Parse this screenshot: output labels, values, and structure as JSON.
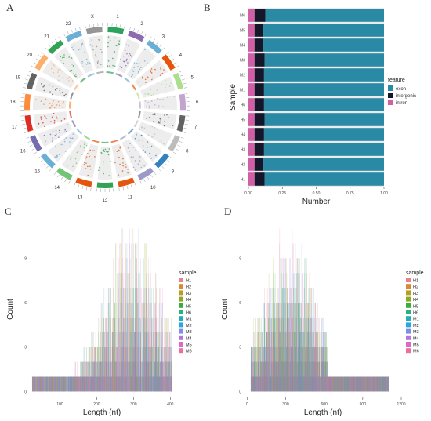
{
  "panel_labels": {
    "a": "A",
    "b": "B",
    "c": "C",
    "d": "D"
  },
  "chart_data": [
    {
      "panel": "A",
      "type": "circos",
      "chromosomes": [
        "1",
        "2",
        "3",
        "4",
        "5",
        "6",
        "7",
        "8",
        "9",
        "10",
        "11",
        "12",
        "13",
        "14",
        "15",
        "16",
        "17",
        "18",
        "19",
        "20",
        "21",
        "22",
        "X"
      ],
      "chromosome_colors": [
        "#2ca25f",
        "#8c6bb1",
        "#6baed6",
        "#e6550d",
        "#addd8e",
        "#c2a5cf",
        "#636363",
        "#bdbdbd",
        "#3182bd",
        "#9e9ac8",
        "#e6550d",
        "#31a354",
        "#e6550d",
        "#74c476",
        "#6baed6",
        "#756bb1",
        "#de2d26",
        "#fd8d3c",
        "#636363",
        "#fdae6b",
        "#31a354",
        "#6baed6",
        "#969696"
      ]
    },
    {
      "panel": "B",
      "type": "bar",
      "orientation": "horizontal",
      "stacked": true,
      "xlabel": "Number",
      "ylabel": "Sample",
      "categories": [
        "H1",
        "H2",
        "H3",
        "H4",
        "H5",
        "H6",
        "M1",
        "M2",
        "M3",
        "M4",
        "M5",
        "M6"
      ],
      "x_ticks": [
        "0.00",
        "0.25",
        "0.50",
        "0.75",
        "1.00"
      ],
      "xlim": [
        0,
        1
      ],
      "legend_title": "feature",
      "legend_position": "right",
      "series": [
        {
          "name": "intron",
          "color": "#d15fa5",
          "values": [
            0.045,
            0.045,
            0.045,
            0.045,
            0.045,
            0.045,
            0.045,
            0.045,
            0.045,
            0.045,
            0.045,
            0.045
          ]
        },
        {
          "name": "intergenic",
          "color": "#14162a",
          "values": [
            0.075,
            0.065,
            0.07,
            0.07,
            0.075,
            0.07,
            0.07,
            0.07,
            0.075,
            0.065,
            0.065,
            0.08
          ]
        },
        {
          "name": "exon",
          "color": "#2a8aa6",
          "values": [
            0.88,
            0.89,
            0.885,
            0.885,
            0.88,
            0.885,
            0.885,
            0.885,
            0.88,
            0.89,
            0.89,
            0.875
          ]
        }
      ],
      "legend_order": [
        "exon",
        "intergenic",
        "intron"
      ]
    },
    {
      "panel": "C",
      "type": "bar",
      "xlabel": "Length (nt)",
      "ylabel": "Count",
      "xlim": [
        18,
        410
      ],
      "ylim": [
        -0.4,
        11.5
      ],
      "x_ticks": [
        100,
        200,
        300,
        400
      ],
      "y_ticks": [
        0,
        3,
        6,
        9
      ],
      "legend_title": "sample",
      "legend_position": "right",
      "series": [
        {
          "name": "H1",
          "color": "#e7828a"
        },
        {
          "name": "H2",
          "color": "#d98a2f"
        },
        {
          "name": "H3",
          "color": "#b99c22"
        },
        {
          "name": "H4",
          "color": "#8da825"
        },
        {
          "name": "H5",
          "color": "#3aae3a"
        },
        {
          "name": "H6",
          "color": "#27b27f"
        },
        {
          "name": "M1",
          "color": "#20afb5"
        },
        {
          "name": "M2",
          "color": "#27a7dc"
        },
        {
          "name": "M3",
          "color": "#7d8ee6"
        },
        {
          "name": "M4",
          "color": "#b276e0"
        },
        {
          "name": "M5",
          "color": "#de67c8"
        },
        {
          "name": "M6",
          "color": "#e96f9c"
        }
      ],
      "distribution": {
        "min": 25,
        "max": 405,
        "peak": 300,
        "max_count": 11
      }
    },
    {
      "panel": "D",
      "type": "bar",
      "xlabel": "Length (nt)",
      "ylabel": "Count",
      "xlim": [
        -20,
        1200
      ],
      "ylim": [
        -0.4,
        11.5
      ],
      "x_ticks": [
        0,
        300,
        600,
        900,
        1200
      ],
      "y_ticks": [
        0,
        3,
        6,
        9
      ],
      "legend_title": "sample",
      "legend_position": "right",
      "series": [
        {
          "name": "H1",
          "color": "#e7828a"
        },
        {
          "name": "H2",
          "color": "#d98a2f"
        },
        {
          "name": "H3",
          "color": "#b99c22"
        },
        {
          "name": "H4",
          "color": "#8da825"
        },
        {
          "name": "H5",
          "color": "#3aae3a"
        },
        {
          "name": "H6",
          "color": "#27b27f"
        },
        {
          "name": "M1",
          "color": "#20afb5"
        },
        {
          "name": "M2",
          "color": "#27a7dc"
        },
        {
          "name": "M3",
          "color": "#7d8ee6"
        },
        {
          "name": "M4",
          "color": "#b276e0"
        },
        {
          "name": "M5",
          "color": "#de67c8"
        },
        {
          "name": "M6",
          "color": "#e96f9c"
        }
      ],
      "distribution": {
        "min": 30,
        "max": 1100,
        "peak": 330,
        "max_count": 10
      }
    }
  ]
}
